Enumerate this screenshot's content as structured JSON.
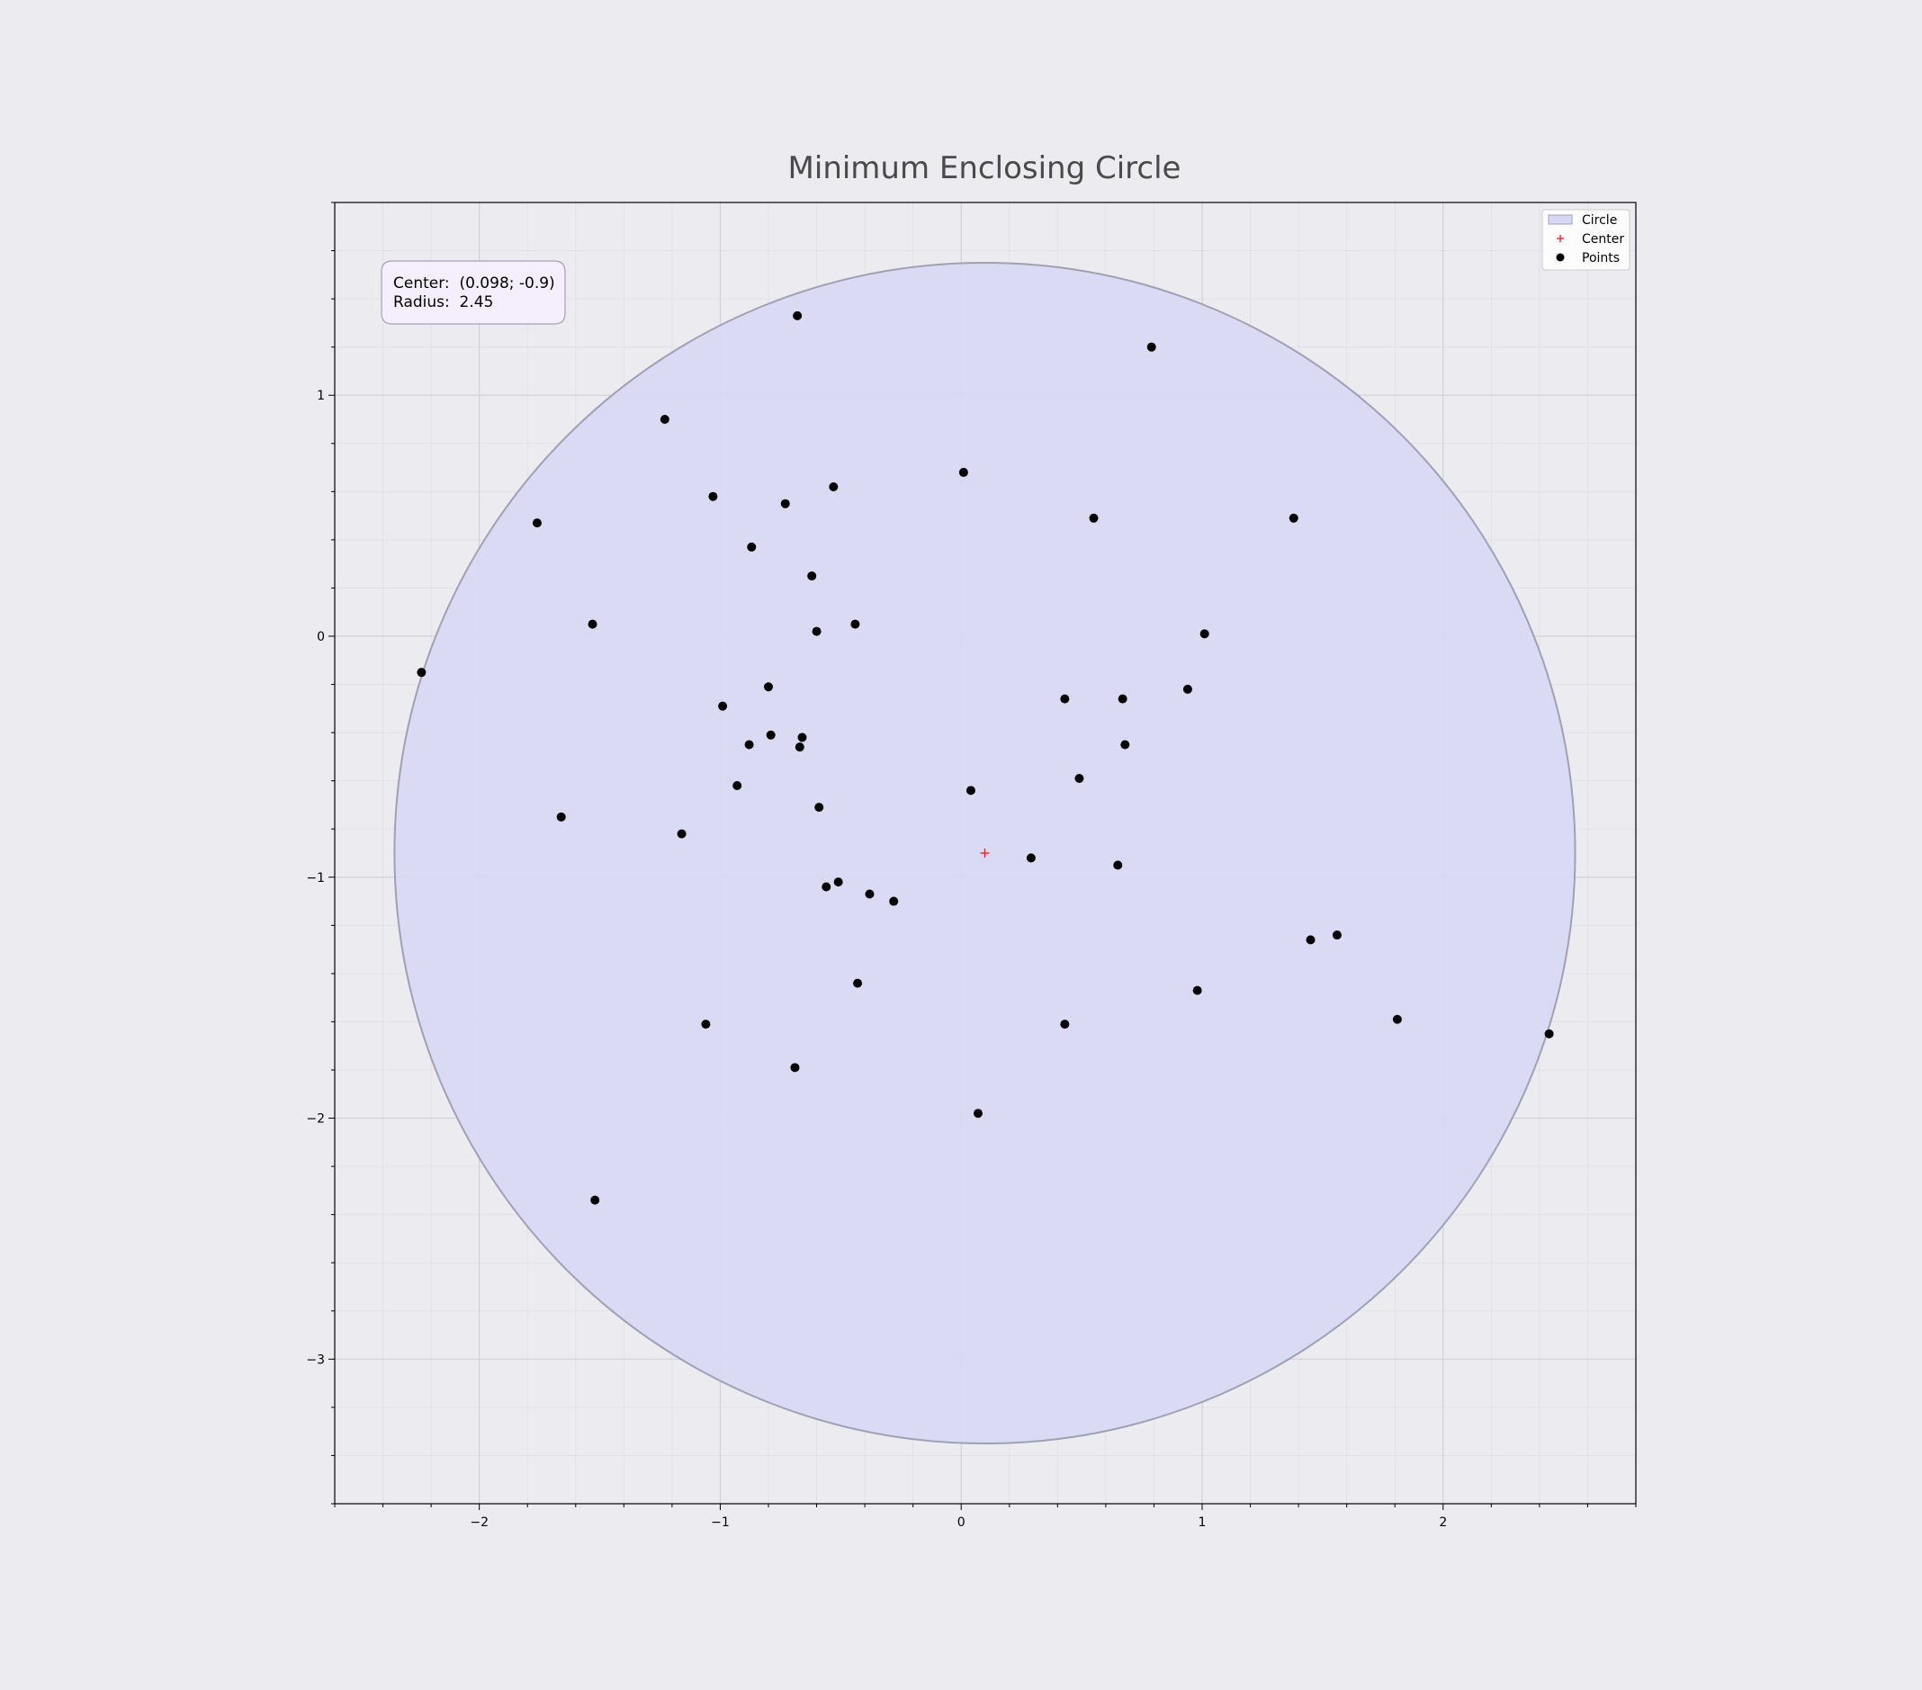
{
  "chart_data": {
    "type": "scatter",
    "title": "Minimum Enclosing Circle",
    "xlabel": "",
    "ylabel": "",
    "xlim": [
      -2.6,
      2.8
    ],
    "ylim": [
      -3.6,
      1.8
    ],
    "xticks": [
      -2,
      -1,
      0,
      1,
      2
    ],
    "yticks": [
      1,
      0,
      -1,
      -2,
      -3
    ],
    "xtick_labels": [
      "−2",
      "−1",
      "0",
      "1",
      "2"
    ],
    "ytick_labels": [
      "1",
      "0",
      "−1",
      "−2",
      "−3"
    ],
    "grid": true,
    "legend_position": "top-right",
    "legend": [
      "Circle",
      "Center",
      "Points"
    ],
    "circle": {
      "center": [
        0.098,
        -0.9
      ],
      "radius": 2.45,
      "fill_color": "#d8d8f4",
      "edge_color": "#a0a0b4"
    },
    "center_color": "#e8282e",
    "point_color": "#000000",
    "info_box": {
      "center_line": "Center:  (0.098; -0.9)",
      "radius_line": "Radius:  2.45"
    },
    "points": [
      [
        -2.24,
        -0.15
      ],
      [
        -1.76,
        0.47
      ],
      [
        -1.53,
        0.05
      ],
      [
        -1.66,
        -0.75
      ],
      [
        -1.52,
        -2.34
      ],
      [
        -1.23,
        0.9
      ],
      [
        -1.16,
        -0.82
      ],
      [
        -1.03,
        0.58
      ],
      [
        -0.99,
        -0.29
      ],
      [
        -1.06,
        -1.61
      ],
      [
        -0.87,
        0.37
      ],
      [
        -0.88,
        -0.45
      ],
      [
        -0.93,
        -0.62
      ],
      [
        -0.8,
        -0.21
      ],
      [
        -0.79,
        -0.41
      ],
      [
        -0.73,
        0.55
      ],
      [
        -0.68,
        1.33
      ],
      [
        -0.62,
        0.25
      ],
      [
        -0.6,
        0.02
      ],
      [
        -0.66,
        -0.42
      ],
      [
        -0.67,
        -0.46
      ],
      [
        -0.59,
        -0.71
      ],
      [
        -0.53,
        0.62
      ],
      [
        -0.44,
        0.05
      ],
      [
        -0.56,
        -1.04
      ],
      [
        -0.51,
        -1.02
      ],
      [
        -0.38,
        -1.07
      ],
      [
        -0.28,
        -1.1
      ],
      [
        -0.43,
        -1.44
      ],
      [
        -0.69,
        -1.79
      ],
      [
        0.01,
        0.68
      ],
      [
        0.04,
        -0.64
      ],
      [
        0.07,
        -1.98
      ],
      [
        0.29,
        -0.92
      ],
      [
        0.43,
        -0.26
      ],
      [
        0.49,
        -0.59
      ],
      [
        0.55,
        0.49
      ],
      [
        0.79,
        1.2
      ],
      [
        0.67,
        -0.26
      ],
      [
        0.68,
        -0.45
      ],
      [
        0.65,
        -0.95
      ],
      [
        0.43,
        -1.61
      ],
      [
        0.94,
        -0.22
      ],
      [
        1.01,
        0.01
      ],
      [
        0.98,
        -1.47
      ],
      [
        1.38,
        0.49
      ],
      [
        1.45,
        -1.26
      ],
      [
        1.56,
        -1.24
      ],
      [
        1.81,
        -1.59
      ],
      [
        2.44,
        -1.65
      ]
    ]
  }
}
